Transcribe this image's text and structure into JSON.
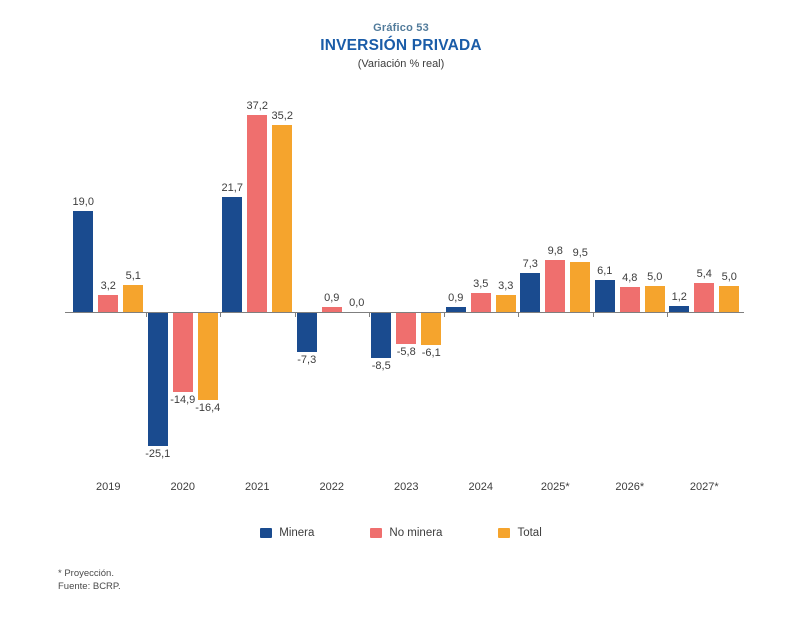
{
  "header": {
    "chart_number": "Gráfico 53",
    "chart_number_color": "#517b9b",
    "title": "INVERSIÓN PRIVADA",
    "title_color": "#1a5ca8",
    "subtitle": "(Variación % real)"
  },
  "chart_data": {
    "type": "bar",
    "title": "INVERSIÓN PRIVADA",
    "subtitle": "(Variación % real)",
    "categories": [
      "2019",
      "2020",
      "2021",
      "2022",
      "2023",
      "2024",
      "2025*",
      "2026*",
      "2027*"
    ],
    "series": [
      {
        "name": "Minera",
        "color": "#1a4b8f",
        "values": [
          19.0,
          -25.1,
          21.7,
          -7.3,
          -8.5,
          0.9,
          7.3,
          6.1,
          1.2
        ]
      },
      {
        "name": "No minera",
        "color": "#ef6f6e",
        "values": [
          3.2,
          -14.9,
          37.2,
          0.9,
          -5.8,
          3.5,
          9.8,
          4.8,
          5.4
        ]
      },
      {
        "name": "Total",
        "color": "#f5a42d",
        "values": [
          5.1,
          -16.4,
          35.2,
          0.0,
          -6.1,
          3.3,
          9.5,
          5.0,
          5.0
        ]
      }
    ],
    "decimal_separator": ",",
    "ylim": [
      -30,
      40
    ],
    "grid": false,
    "legend_position": "bottom",
    "axis_color": "#7f7f7f",
    "value_label_color": "#3d3d3d"
  },
  "footer": {
    "projection_note": "* Proyección.",
    "source": "Fuente: BCRP."
  }
}
